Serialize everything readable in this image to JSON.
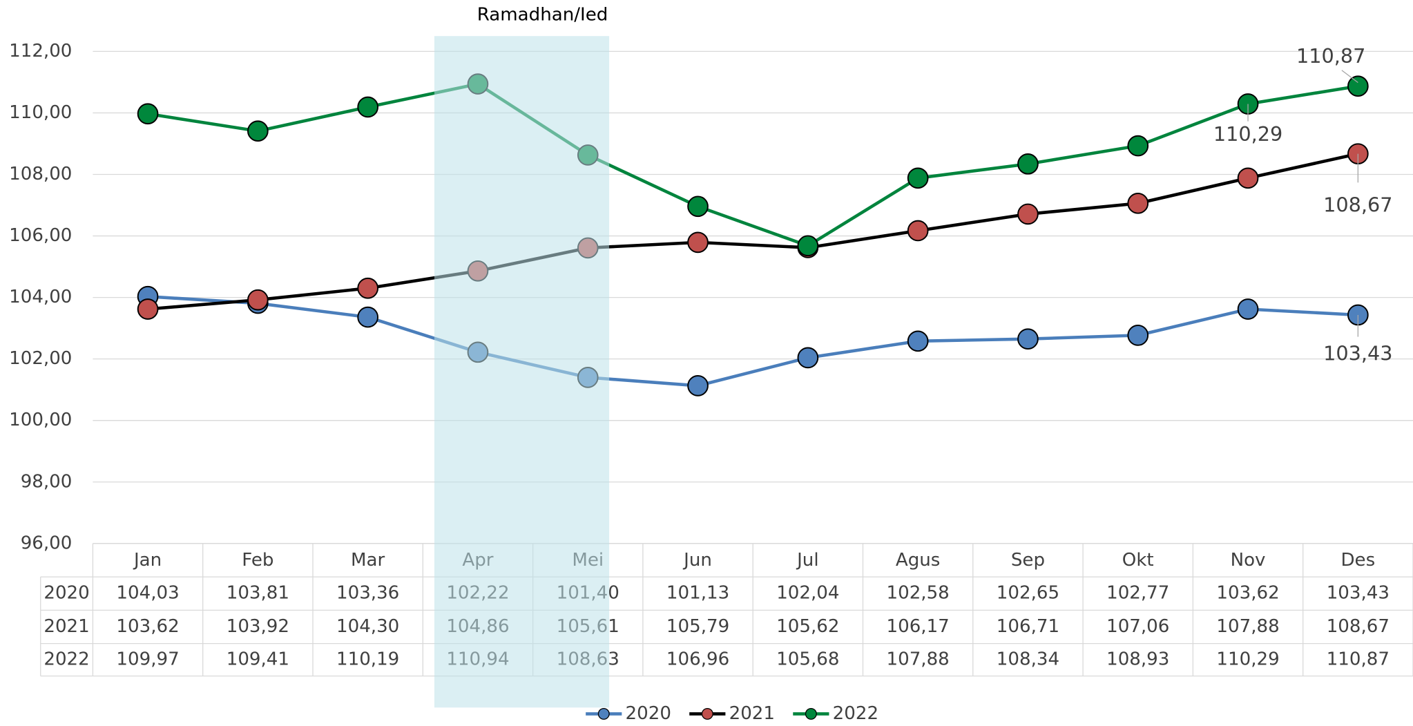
{
  "chart_data": {
    "type": "line",
    "annotations": [
      "Ramadhan/Ied"
    ],
    "categories": [
      "Jan",
      "Feb",
      "Mar",
      "Apr",
      "Mei",
      "Jun",
      "Jul",
      "Agus",
      "Sep",
      "Okt",
      "Nov",
      "Des"
    ],
    "series": [
      {
        "name": "2020",
        "color": "#4f81bd",
        "line_color": "#4a7ebb",
        "values": [
          104.03,
          103.81,
          103.36,
          102.22,
          101.4,
          101.13,
          102.04,
          102.58,
          102.65,
          102.77,
          103.62,
          103.43
        ],
        "value_labels": [
          "104,03",
          "103,81",
          "103,36",
          "102,22",
          "101,40",
          "101,13",
          "102,04",
          "102,58",
          "102,65",
          "102,77",
          "103,62",
          "103,43"
        ]
      },
      {
        "name": "2021",
        "color": "#c0504d",
        "line_color": "#000000",
        "values": [
          103.62,
          103.92,
          104.3,
          104.86,
          105.61,
          105.79,
          105.62,
          106.17,
          106.71,
          107.06,
          107.88,
          108.67
        ],
        "value_labels": [
          "103,62",
          "103,92",
          "104,30",
          "104,86",
          "105,61",
          "105,79",
          "105,62",
          "106,17",
          "106,71",
          "107,06",
          "107,88",
          "108,67"
        ]
      },
      {
        "name": "2022",
        "color": "#00873c",
        "line_color": "#00843d",
        "values": [
          109.97,
          109.41,
          110.19,
          110.94,
          108.63,
          106.96,
          105.68,
          107.88,
          108.34,
          108.93,
          110.29,
          110.87
        ],
        "value_labels": [
          "109,97",
          "109,41",
          "110,19",
          "110,94",
          "108,63",
          "106,96",
          "105,68",
          "107,88",
          "108,34",
          "108,93",
          "110,29",
          "110,87"
        ]
      }
    ],
    "ylim": [
      96,
      112
    ],
    "yticks": [
      {
        "value": 96,
        "label": "96,00"
      },
      {
        "value": 98,
        "label": "98,00"
      },
      {
        "value": 100,
        "label": "100,00"
      },
      {
        "value": 102,
        "label": "102,00"
      },
      {
        "value": 104,
        "label": "104,00"
      },
      {
        "value": 106,
        "label": "106,00"
      },
      {
        "value": 108,
        "label": "108,00"
      },
      {
        "value": 110,
        "label": "110,00"
      },
      {
        "value": 112,
        "label": "112,00"
      }
    ],
    "grid": true,
    "legend": "bottom"
  }
}
